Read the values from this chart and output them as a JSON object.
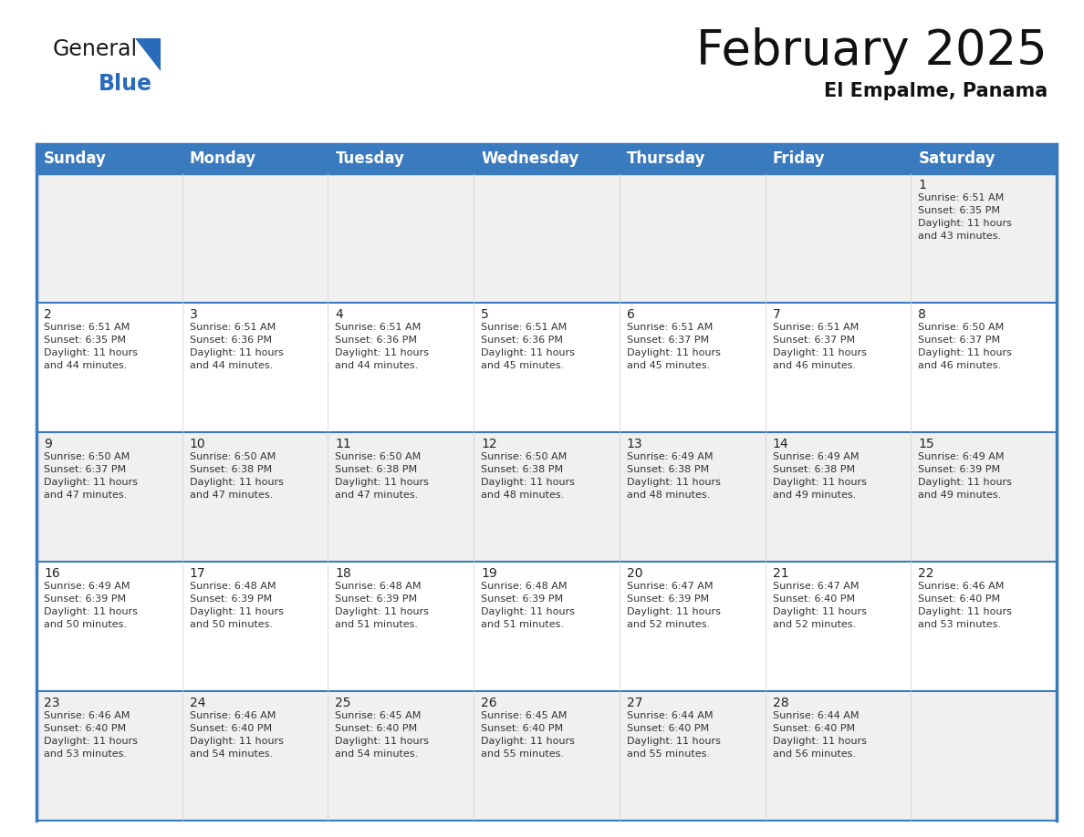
{
  "title": "February 2025",
  "subtitle": "El Empalme, Panama",
  "header_color": "#3a7abf",
  "header_text_color": "#ffffff",
  "cell_bg_even": "#f0f0f0",
  "cell_bg_odd": "#ffffff",
  "border_color": "#3a7abf",
  "row_separator_color": "#3a7abf",
  "day_headers": [
    "Sunday",
    "Monday",
    "Tuesday",
    "Wednesday",
    "Thursday",
    "Friday",
    "Saturday"
  ],
  "days": [
    {
      "day": 1,
      "col": 6,
      "row": 0,
      "sunrise": "6:51 AM",
      "sunset": "6:35 PM",
      "daylight_hours": 11,
      "daylight_minutes": 43
    },
    {
      "day": 2,
      "col": 0,
      "row": 1,
      "sunrise": "6:51 AM",
      "sunset": "6:35 PM",
      "daylight_hours": 11,
      "daylight_minutes": 44
    },
    {
      "day": 3,
      "col": 1,
      "row": 1,
      "sunrise": "6:51 AM",
      "sunset": "6:36 PM",
      "daylight_hours": 11,
      "daylight_minutes": 44
    },
    {
      "day": 4,
      "col": 2,
      "row": 1,
      "sunrise": "6:51 AM",
      "sunset": "6:36 PM",
      "daylight_hours": 11,
      "daylight_minutes": 44
    },
    {
      "day": 5,
      "col": 3,
      "row": 1,
      "sunrise": "6:51 AM",
      "sunset": "6:36 PM",
      "daylight_hours": 11,
      "daylight_minutes": 45
    },
    {
      "day": 6,
      "col": 4,
      "row": 1,
      "sunrise": "6:51 AM",
      "sunset": "6:37 PM",
      "daylight_hours": 11,
      "daylight_minutes": 45
    },
    {
      "day": 7,
      "col": 5,
      "row": 1,
      "sunrise": "6:51 AM",
      "sunset": "6:37 PM",
      "daylight_hours": 11,
      "daylight_minutes": 46
    },
    {
      "day": 8,
      "col": 6,
      "row": 1,
      "sunrise": "6:50 AM",
      "sunset": "6:37 PM",
      "daylight_hours": 11,
      "daylight_minutes": 46
    },
    {
      "day": 9,
      "col": 0,
      "row": 2,
      "sunrise": "6:50 AM",
      "sunset": "6:37 PM",
      "daylight_hours": 11,
      "daylight_minutes": 47
    },
    {
      "day": 10,
      "col": 1,
      "row": 2,
      "sunrise": "6:50 AM",
      "sunset": "6:38 PM",
      "daylight_hours": 11,
      "daylight_minutes": 47
    },
    {
      "day": 11,
      "col": 2,
      "row": 2,
      "sunrise": "6:50 AM",
      "sunset": "6:38 PM",
      "daylight_hours": 11,
      "daylight_minutes": 47
    },
    {
      "day": 12,
      "col": 3,
      "row": 2,
      "sunrise": "6:50 AM",
      "sunset": "6:38 PM",
      "daylight_hours": 11,
      "daylight_minutes": 48
    },
    {
      "day": 13,
      "col": 4,
      "row": 2,
      "sunrise": "6:49 AM",
      "sunset": "6:38 PM",
      "daylight_hours": 11,
      "daylight_minutes": 48
    },
    {
      "day": 14,
      "col": 5,
      "row": 2,
      "sunrise": "6:49 AM",
      "sunset": "6:38 PM",
      "daylight_hours": 11,
      "daylight_minutes": 49
    },
    {
      "day": 15,
      "col": 6,
      "row": 2,
      "sunrise": "6:49 AM",
      "sunset": "6:39 PM",
      "daylight_hours": 11,
      "daylight_minutes": 49
    },
    {
      "day": 16,
      "col": 0,
      "row": 3,
      "sunrise": "6:49 AM",
      "sunset": "6:39 PM",
      "daylight_hours": 11,
      "daylight_minutes": 50
    },
    {
      "day": 17,
      "col": 1,
      "row": 3,
      "sunrise": "6:48 AM",
      "sunset": "6:39 PM",
      "daylight_hours": 11,
      "daylight_minutes": 50
    },
    {
      "day": 18,
      "col": 2,
      "row": 3,
      "sunrise": "6:48 AM",
      "sunset": "6:39 PM",
      "daylight_hours": 11,
      "daylight_minutes": 51
    },
    {
      "day": 19,
      "col": 3,
      "row": 3,
      "sunrise": "6:48 AM",
      "sunset": "6:39 PM",
      "daylight_hours": 11,
      "daylight_minutes": 51
    },
    {
      "day": 20,
      "col": 4,
      "row": 3,
      "sunrise": "6:47 AM",
      "sunset": "6:39 PM",
      "daylight_hours": 11,
      "daylight_minutes": 52
    },
    {
      "day": 21,
      "col": 5,
      "row": 3,
      "sunrise": "6:47 AM",
      "sunset": "6:40 PM",
      "daylight_hours": 11,
      "daylight_minutes": 52
    },
    {
      "day": 22,
      "col": 6,
      "row": 3,
      "sunrise": "6:46 AM",
      "sunset": "6:40 PM",
      "daylight_hours": 11,
      "daylight_minutes": 53
    },
    {
      "day": 23,
      "col": 0,
      "row": 4,
      "sunrise": "6:46 AM",
      "sunset": "6:40 PM",
      "daylight_hours": 11,
      "daylight_minutes": 53
    },
    {
      "day": 24,
      "col": 1,
      "row": 4,
      "sunrise": "6:46 AM",
      "sunset": "6:40 PM",
      "daylight_hours": 11,
      "daylight_minutes": 54
    },
    {
      "day": 25,
      "col": 2,
      "row": 4,
      "sunrise": "6:45 AM",
      "sunset": "6:40 PM",
      "daylight_hours": 11,
      "daylight_minutes": 54
    },
    {
      "day": 26,
      "col": 3,
      "row": 4,
      "sunrise": "6:45 AM",
      "sunset": "6:40 PM",
      "daylight_hours": 11,
      "daylight_minutes": 55
    },
    {
      "day": 27,
      "col": 4,
      "row": 4,
      "sunrise": "6:44 AM",
      "sunset": "6:40 PM",
      "daylight_hours": 11,
      "daylight_minutes": 55
    },
    {
      "day": 28,
      "col": 5,
      "row": 4,
      "sunrise": "6:44 AM",
      "sunset": "6:40 PM",
      "daylight_hours": 11,
      "daylight_minutes": 56
    }
  ],
  "num_rows": 5,
  "num_cols": 7,
  "logo_color_general": "#1a1a1a",
  "logo_color_blue": "#2a6aba",
  "logo_triangle_color": "#2a6aba",
  "title_fontsize": 38,
  "subtitle_fontsize": 15,
  "header_fontsize": 12,
  "day_num_fontsize": 10,
  "cell_text_fontsize": 8
}
